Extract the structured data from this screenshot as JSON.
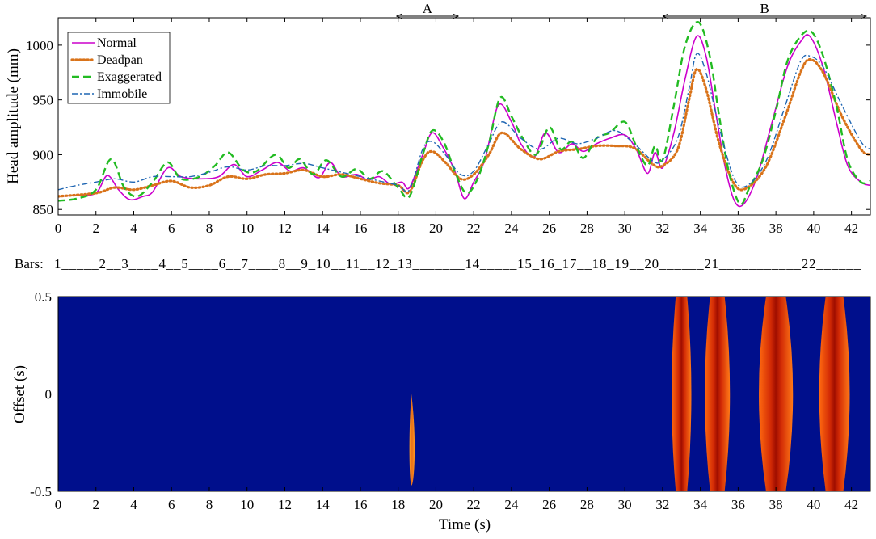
{
  "chart_data": [
    {
      "type": "line",
      "ylabel": "Head amplitude (mm)",
      "xlabel": "",
      "xlim": [
        0,
        43
      ],
      "ylim": [
        845,
        1025
      ],
      "xticks": [
        0,
        2,
        4,
        6,
        8,
        10,
        12,
        14,
        16,
        18,
        20,
        22,
        24,
        26,
        28,
        30,
        32,
        34,
        36,
        38,
        40,
        42
      ],
      "yticks": [
        850,
        900,
        950,
        1000
      ],
      "grid": false,
      "legend_position": "top-left",
      "series": [
        {
          "name": "Normal",
          "color": "#cc00cc",
          "style": "solid",
          "x": [
            0,
            1,
            2,
            2.6,
            3.2,
            3.8,
            4.5,
            5,
            5.8,
            6.5,
            7.5,
            8.5,
            9.3,
            10,
            10.8,
            11.6,
            12.3,
            13,
            13.8,
            14.4,
            15,
            15.8,
            16.4,
            17,
            17.6,
            18.2,
            18.6,
            19.3,
            19.8,
            20.4,
            21,
            21.5,
            22,
            22.6,
            23.3,
            24,
            24.5,
            25.2,
            25.8,
            26.5,
            27.2,
            27.8,
            28.5,
            29.2,
            30,
            30.6,
            31.2,
            31.6,
            32,
            32.6,
            33.2,
            33.8,
            34.3,
            34.8,
            35.3,
            35.8,
            36.3,
            37,
            37.8,
            38.6,
            39.3,
            39.8,
            40.5,
            41.2,
            41.8,
            42.5,
            43
          ],
          "y": [
            862,
            863,
            865,
            881,
            868,
            859,
            862,
            866,
            888,
            880,
            878,
            880,
            891,
            880,
            886,
            893,
            885,
            888,
            879,
            893,
            880,
            882,
            877,
            880,
            873,
            875,
            870,
            900,
            920,
            906,
            885,
            860,
            875,
            896,
            945,
            930,
            910,
            898,
            920,
            902,
            910,
            903,
            910,
            915,
            918,
            905,
            883,
            902,
            888,
            920,
            970,
            1008,
            990,
            940,
            890,
            858,
            855,
            880,
            930,
            980,
            1003,
            1008,
            980,
            930,
            890,
            875,
            872
          ]
        },
        {
          "name": "Deadpan",
          "color": "#d9731a",
          "style": "dotted",
          "x": [
            0,
            2,
            3,
            4,
            5,
            6,
            7,
            8,
            9,
            10,
            11,
            12,
            13,
            14,
            15,
            16,
            17,
            18,
            18.6,
            19.3,
            19.8,
            20.5,
            21.3,
            22,
            22.8,
            23.5,
            24.5,
            25.5,
            26.5,
            27.5,
            28.5,
            29.5,
            30.5,
            31.5,
            32,
            32.8,
            33.4,
            33.8,
            34.3,
            35,
            35.8,
            36.5,
            37.5,
            38.5,
            39.3,
            39.8,
            40.5,
            41.5,
            42.5,
            43
          ],
          "y": [
            862,
            865,
            870,
            868,
            872,
            876,
            870,
            872,
            880,
            878,
            882,
            883,
            886,
            880,
            882,
            878,
            874,
            872,
            866,
            895,
            903,
            893,
            878,
            882,
            900,
            920,
            905,
            896,
            903,
            905,
            908,
            908,
            906,
            891,
            890,
            905,
            950,
            978,
            960,
            910,
            873,
            870,
            890,
            935,
            975,
            987,
            975,
            935,
            905,
            900
          ]
        },
        {
          "name": "Exaggerated",
          "color": "#22bb22",
          "style": "dashed",
          "x": [
            0,
            1,
            2,
            2.8,
            3.5,
            4.2,
            5,
            5.8,
            6.5,
            7.5,
            8.3,
            9,
            9.8,
            10.5,
            11.5,
            12.2,
            12.8,
            13.5,
            14.2,
            15,
            15.8,
            16.5,
            17.2,
            18,
            18.6,
            19.3,
            19.8,
            20.4,
            21,
            21.6,
            22.2,
            22.8,
            23.4,
            24,
            24.6,
            25.3,
            26,
            26.6,
            27.2,
            27.8,
            28.5,
            29.2,
            30,
            30.6,
            31.2,
            31.6,
            32,
            32.6,
            33.2,
            33.9,
            34.5,
            35,
            35.5,
            36.1,
            36.6,
            37.3,
            38,
            38.6,
            39.3,
            39.9,
            40.5,
            41.2,
            41.8,
            42.5,
            43
          ],
          "y": [
            858,
            860,
            868,
            896,
            870,
            862,
            875,
            893,
            878,
            880,
            890,
            902,
            886,
            885,
            900,
            888,
            896,
            882,
            895,
            880,
            887,
            878,
            885,
            870,
            862,
            900,
            922,
            912,
            885,
            865,
            878,
            910,
            952,
            935,
            915,
            900,
            925,
            905,
            912,
            897,
            915,
            920,
            930,
            908,
            890,
            908,
            895,
            945,
            1000,
            1021,
            990,
            935,
            885,
            855,
            870,
            895,
            940,
            985,
            1008,
            1012,
            990,
            945,
            895,
            875,
            876
          ]
        },
        {
          "name": "Immobile",
          "color": "#1f66b3",
          "style": "dashdot",
          "x": [
            0,
            1,
            2,
            3,
            4,
            5,
            6,
            7,
            8,
            9,
            10,
            11,
            12,
            13,
            14,
            15,
            16,
            17,
            18,
            18.6,
            19.3,
            19.8,
            20.5,
            21.3,
            22,
            22.8,
            23.5,
            24.5,
            25.5,
            26.5,
            27.5,
            28.5,
            29.5,
            30.5,
            31.5,
            32,
            32.8,
            33.4,
            33.8,
            34.3,
            35,
            35.8,
            36.5,
            37.5,
            38.5,
            39.3,
            39.8,
            40.5,
            41.5,
            42.5,
            43
          ],
          "y": [
            868,
            872,
            875,
            878,
            875,
            880,
            880,
            880,
            884,
            889,
            886,
            890,
            890,
            892,
            888,
            884,
            880,
            876,
            872,
            868,
            905,
            912,
            900,
            882,
            885,
            910,
            930,
            915,
            905,
            915,
            910,
            915,
            922,
            910,
            894,
            895,
            915,
            960,
            992,
            975,
            925,
            878,
            872,
            895,
            945,
            985,
            990,
            980,
            945,
            912,
            905
          ]
        }
      ]
    },
    {
      "type": "table",
      "label": "Bars:",
      "text": "1_____2__3____4__5____6__7____8__9_10__11__12_13_______14_____15_16_17__18_19__20______21___________22______"
    },
    {
      "type": "heatmap",
      "xlabel": "Time (s)",
      "ylabel": "Offset (s)",
      "xlim": [
        0,
        43
      ],
      "ylim": [
        -0.5,
        0.5
      ],
      "xticks": [
        0,
        2,
        4,
        6,
        8,
        10,
        12,
        14,
        16,
        18,
        20,
        22,
        24,
        26,
        28,
        30,
        32,
        34,
        36,
        38,
        40,
        42
      ],
      "ytick_labels": [
        "0.5",
        "0",
        "-0.5"
      ],
      "background_color": "#000f8c",
      "blobs": [
        {
          "x_center": 18.7,
          "half_width": 0.15,
          "y_top": 0.0,
          "y_bottom": -0.47
        },
        {
          "x_center": 33.0,
          "half_width": 0.55,
          "y_top": 0.5,
          "y_bottom": -0.5
        },
        {
          "x_center": 34.9,
          "half_width": 0.7,
          "y_top": 0.5,
          "y_bottom": -0.5
        },
        {
          "x_center": 38.0,
          "half_width": 0.95,
          "y_top": 0.5,
          "y_bottom": -0.5
        },
        {
          "x_center": 41.1,
          "half_width": 0.85,
          "y_top": 0.5,
          "y_bottom": -0.5
        }
      ]
    }
  ],
  "annotations": [
    {
      "label": "A",
      "x_start": 17.9,
      "x_end": 21.2
    },
    {
      "label": "B",
      "x_start": 32.0,
      "x_end": 42.8
    }
  ]
}
